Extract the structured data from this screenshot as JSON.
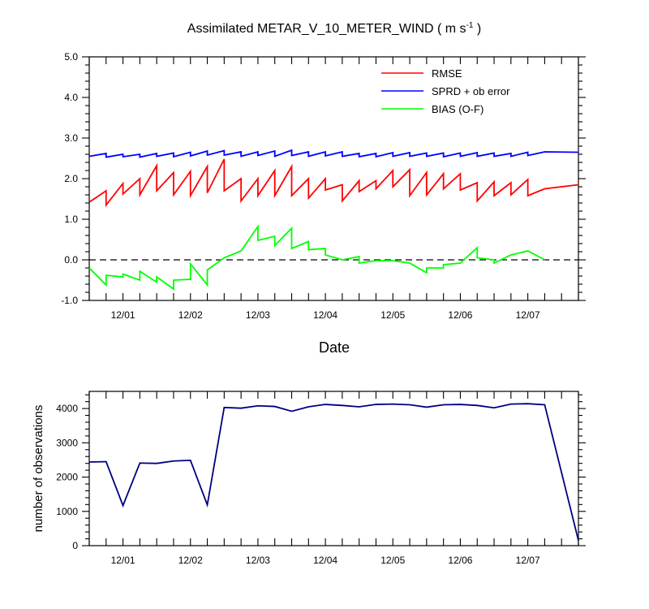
{
  "chart_data": [
    {
      "type": "line",
      "title_main": "Assimilated METAR_V_10_METER_WIND ( m s",
      "title_sup": "-1",
      "title_end": " )",
      "xlabel": "Date",
      "ylabel": "",
      "ylim": [
        -1.0,
        5.0
      ],
      "yticks": [
        "-1.0",
        "0.0",
        "1.0",
        "2.0",
        "3.0",
        "4.0",
        "5.0"
      ],
      "xlim": [
        0,
        7.25
      ],
      "xticks": [
        {
          "at": 0.5,
          "label": "12/01"
        },
        {
          "at": 1.5,
          "label": "12/02"
        },
        {
          "at": 2.5,
          "label": "12/03"
        },
        {
          "at": 3.5,
          "label": "12/04"
        },
        {
          "at": 4.5,
          "label": "12/05"
        },
        {
          "at": 5.5,
          "label": "12/06"
        },
        {
          "at": 6.5,
          "label": "12/07"
        }
      ],
      "reference_line": 0.0,
      "legend_position": "top-right",
      "series": [
        {
          "name": "RMSE",
          "color": "#ff0000",
          "points": [
            [
              0,
              1.42
            ],
            [
              0.25,
              1.7
            ],
            [
              0.25,
              1.35
            ],
            [
              0.5,
              1.88
            ],
            [
              0.5,
              1.62
            ],
            [
              0.75,
              2.0
            ],
            [
              0.75,
              1.6
            ],
            [
              1.0,
              2.32
            ],
            [
              1.0,
              1.7
            ],
            [
              1.25,
              2.15
            ],
            [
              1.25,
              1.6
            ],
            [
              1.5,
              2.18
            ],
            [
              1.5,
              1.58
            ],
            [
              1.75,
              2.3
            ],
            [
              1.75,
              1.65
            ],
            [
              2.0,
              2.48
            ],
            [
              2.0,
              1.7
            ],
            [
              2.25,
              2.0
            ],
            [
              2.25,
              1.45
            ],
            [
              2.5,
              2.0
            ],
            [
              2.5,
              1.58
            ],
            [
              2.75,
              2.2
            ],
            [
              2.75,
              1.58
            ],
            [
              3.0,
              2.3
            ],
            [
              3.0,
              1.58
            ],
            [
              3.25,
              2.0
            ],
            [
              3.25,
              1.52
            ],
            [
              3.5,
              2.0
            ],
            [
              3.5,
              1.72
            ],
            [
              3.75,
              1.85
            ],
            [
              3.75,
              1.45
            ],
            [
              4.0,
              1.95
            ],
            [
              4.0,
              1.68
            ],
            [
              4.25,
              1.95
            ],
            [
              4.25,
              1.75
            ],
            [
              4.5,
              2.2
            ],
            [
              4.5,
              1.8
            ],
            [
              4.75,
              2.22
            ],
            [
              4.75,
              1.58
            ],
            [
              5.0,
              2.15
            ],
            [
              5.0,
              1.6
            ],
            [
              5.25,
              2.12
            ],
            [
              5.25,
              1.75
            ],
            [
              5.5,
              2.12
            ],
            [
              5.5,
              1.72
            ],
            [
              5.75,
              1.9
            ],
            [
              5.75,
              1.45
            ],
            [
              6.0,
              1.92
            ],
            [
              6.0,
              1.58
            ],
            [
              6.25,
              1.9
            ],
            [
              6.25,
              1.6
            ],
            [
              6.5,
              1.98
            ],
            [
              6.5,
              1.58
            ],
            [
              6.75,
              1.75
            ],
            [
              7.25,
              1.85
            ]
          ]
        },
        {
          "name": "SPRD + ob error",
          "color": "#0000ff",
          "points": [
            [
              0,
              2.55
            ],
            [
              0.25,
              2.62
            ],
            [
              0.25,
              2.53
            ],
            [
              0.5,
              2.6
            ],
            [
              0.5,
              2.54
            ],
            [
              0.75,
              2.6
            ],
            [
              0.75,
              2.53
            ],
            [
              1.0,
              2.62
            ],
            [
              1.0,
              2.55
            ],
            [
              1.25,
              2.63
            ],
            [
              1.25,
              2.54
            ],
            [
              1.5,
              2.65
            ],
            [
              1.5,
              2.56
            ],
            [
              1.75,
              2.68
            ],
            [
              1.75,
              2.58
            ],
            [
              2.0,
              2.69
            ],
            [
              2.0,
              2.58
            ],
            [
              2.25,
              2.66
            ],
            [
              2.25,
              2.55
            ],
            [
              2.5,
              2.66
            ],
            [
              2.5,
              2.57
            ],
            [
              2.75,
              2.68
            ],
            [
              2.75,
              2.55
            ],
            [
              3.0,
              2.7
            ],
            [
              3.0,
              2.57
            ],
            [
              3.25,
              2.66
            ],
            [
              3.25,
              2.55
            ],
            [
              3.5,
              2.66
            ],
            [
              3.5,
              2.56
            ],
            [
              3.75,
              2.66
            ],
            [
              3.75,
              2.55
            ],
            [
              4.0,
              2.62
            ],
            [
              4.0,
              2.54
            ],
            [
              4.25,
              2.62
            ],
            [
              4.25,
              2.54
            ],
            [
              4.5,
              2.64
            ],
            [
              4.5,
              2.55
            ],
            [
              4.75,
              2.64
            ],
            [
              4.75,
              2.55
            ],
            [
              5.0,
              2.63
            ],
            [
              5.0,
              2.55
            ],
            [
              5.25,
              2.63
            ],
            [
              5.25,
              2.54
            ],
            [
              5.5,
              2.63
            ],
            [
              5.5,
              2.55
            ],
            [
              5.75,
              2.64
            ],
            [
              5.75,
              2.55
            ],
            [
              6.0,
              2.63
            ],
            [
              6.0,
              2.55
            ],
            [
              6.25,
              2.62
            ],
            [
              6.25,
              2.55
            ],
            [
              6.5,
              2.65
            ],
            [
              6.5,
              2.57
            ],
            [
              6.75,
              2.66
            ],
            [
              7.25,
              2.65
            ]
          ]
        },
        {
          "name": "BIAS (O-F)",
          "color": "#00ff00",
          "points": [
            [
              0,
              -0.2
            ],
            [
              0.25,
              -0.62
            ],
            [
              0.25,
              -0.38
            ],
            [
              0.5,
              -0.42
            ],
            [
              0.5,
              -0.35
            ],
            [
              0.75,
              -0.5
            ],
            [
              0.75,
              -0.28
            ],
            [
              1.0,
              -0.55
            ],
            [
              1.0,
              -0.42
            ],
            [
              1.25,
              -0.72
            ],
            [
              1.25,
              -0.5
            ],
            [
              1.5,
              -0.48
            ],
            [
              1.5,
              -0.1
            ],
            [
              1.75,
              -0.62
            ],
            [
              1.75,
              -0.25
            ],
            [
              2.0,
              0.05
            ],
            [
              2.25,
              0.22
            ],
            [
              2.5,
              0.82
            ],
            [
              2.5,
              0.48
            ],
            [
              2.75,
              0.58
            ],
            [
              2.75,
              0.35
            ],
            [
              3.0,
              0.78
            ],
            [
              3.0,
              0.28
            ],
            [
              3.25,
              0.45
            ],
            [
              3.25,
              0.25
            ],
            [
              3.5,
              0.28
            ],
            [
              3.5,
              0.12
            ],
            [
              3.75,
              0.0
            ],
            [
              4.0,
              0.08
            ],
            [
              4.0,
              -0.08
            ],
            [
              4.25,
              -0.02
            ],
            [
              4.5,
              -0.02
            ],
            [
              4.75,
              -0.08
            ],
            [
              5.0,
              -0.32
            ],
            [
              5.0,
              -0.2
            ],
            [
              5.25,
              -0.2
            ],
            [
              5.25,
              -0.12
            ],
            [
              5.5,
              -0.08
            ],
            [
              5.75,
              0.3
            ],
            [
              5.75,
              0.05
            ],
            [
              6.0,
              0.0
            ],
            [
              6.0,
              -0.08
            ],
            [
              6.25,
              0.12
            ],
            [
              6.5,
              0.22
            ],
            [
              6.75,
              0.0
            ]
          ]
        }
      ]
    },
    {
      "type": "line",
      "title": "",
      "xlabel": "",
      "ylabel": "number of observations",
      "ylim": [
        0,
        4500
      ],
      "yticks": [
        "0",
        "1000",
        "2000",
        "3000",
        "4000"
      ],
      "xlim": [
        0,
        7.25
      ],
      "xticks": [
        {
          "at": 0.5,
          "label": "12/01"
        },
        {
          "at": 1.5,
          "label": "12/02"
        },
        {
          "at": 2.5,
          "label": "12/03"
        },
        {
          "at": 3.5,
          "label": "12/04"
        },
        {
          "at": 4.5,
          "label": "12/05"
        },
        {
          "at": 5.5,
          "label": "12/06"
        },
        {
          "at": 6.5,
          "label": "12/07"
        }
      ],
      "series": [
        {
          "name": "observations",
          "color": "#000080",
          "points": [
            [
              0,
              2440
            ],
            [
              0.25,
              2450
            ],
            [
              0.5,
              1170
            ],
            [
              0.75,
              2410
            ],
            [
              1.0,
              2400
            ],
            [
              1.25,
              2470
            ],
            [
              1.5,
              2490
            ],
            [
              1.75,
              1190
            ],
            [
              2.0,
              4030
            ],
            [
              2.25,
              4010
            ],
            [
              2.5,
              4080
            ],
            [
              2.75,
              4060
            ],
            [
              3.0,
              3920
            ],
            [
              3.25,
              4050
            ],
            [
              3.5,
              4120
            ],
            [
              3.75,
              4090
            ],
            [
              4.0,
              4050
            ],
            [
              4.25,
              4120
            ],
            [
              4.5,
              4130
            ],
            [
              4.75,
              4110
            ],
            [
              5.0,
              4040
            ],
            [
              5.25,
              4110
            ],
            [
              5.5,
              4120
            ],
            [
              5.75,
              4090
            ],
            [
              6.0,
              4020
            ],
            [
              6.25,
              4130
            ],
            [
              6.5,
              4140
            ],
            [
              6.75,
              4110
            ],
            [
              7.25,
              150
            ]
          ]
        }
      ]
    }
  ]
}
